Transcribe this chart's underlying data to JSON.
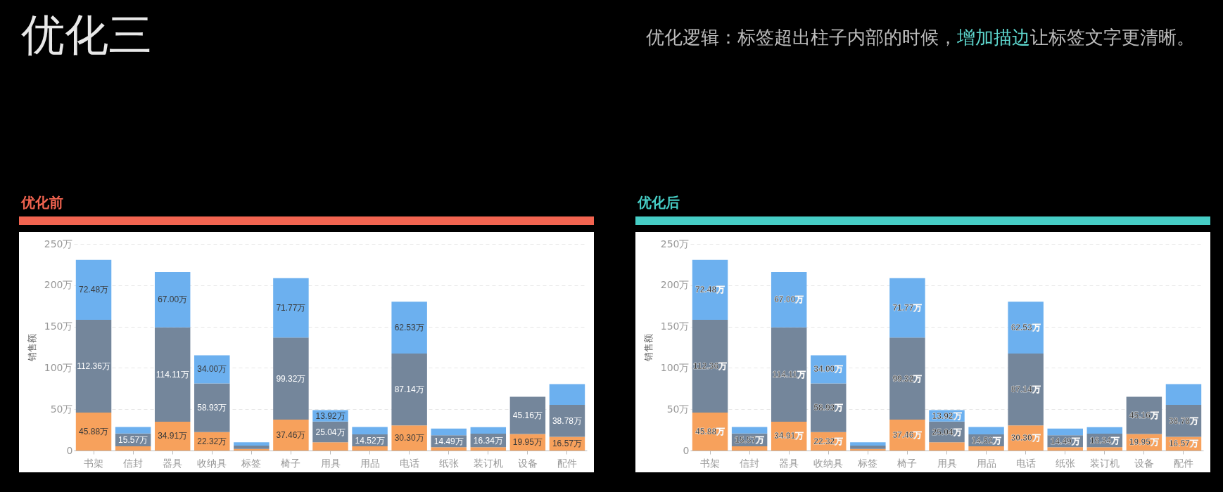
{
  "chart_data": [
    {
      "type": "bar",
      "title": "优化前",
      "annotations": [
        "优化三",
        "优化逻辑：标签超出柱子内部的时候，",
        "增加描边",
        "让标签文字更清晰。"
      ],
      "ylabel": "销售额",
      "stacked": true,
      "grid": "y",
      "ylim": [
        0,
        250
      ],
      "yticks": [
        0,
        {
          "value": 50,
          "label": "50万"
        },
        {
          "value": 100,
          "label": "100万"
        },
        {
          "value": 150,
          "label": "150万"
        },
        {
          "value": 200,
          "label": "200万"
        },
        {
          "value": 250,
          "label": "250万"
        }
      ],
      "categories": [
        "书架",
        "信封",
        "器具",
        "收纳具",
        "标签",
        "椅子",
        "用具",
        "用品",
        "电话",
        "纸张",
        "装订机",
        "设备",
        "配件"
      ],
      "series": [
        {
          "color": "#f7a15c",
          "values": [
            45.88,
            5,
            34.91,
            22.32,
            2,
            37.46,
            10,
            5,
            30.3,
            4,
            4,
            19.95,
            16.57
          ],
          "value_labels": [
            "45.88万",
            null,
            "34.91万",
            "22.32万",
            null,
            "37.46万",
            null,
            null,
            "30.30万",
            null,
            null,
            "19.95万",
            "16.57万"
          ]
        },
        {
          "color": "#74869b",
          "values": [
            112.36,
            15.57,
            114.11,
            58.93,
            4,
            99.32,
            25.04,
            14.52,
            87.14,
            14.49,
            16.34,
            45.16,
            38.78
          ],
          "value_labels": [
            "112.36万",
            "15.57万",
            "114.11万",
            "58.93万",
            null,
            "99.32万",
            "25.04万",
            "14.52万",
            "87.14万",
            "14.49万",
            "16.34万",
            "45.16万",
            "38.78万"
          ]
        },
        {
          "color": "#6cb0ef",
          "values": [
            72.48,
            8,
            67,
            34,
            4,
            71.77,
            13.92,
            9,
            62.53,
            8,
            8,
            null,
            25
          ],
          "value_labels": [
            "72.48万",
            null,
            "67.00万",
            "34.00万",
            null,
            "71.77万",
            "13.92万",
            null,
            "62.53万",
            null,
            null,
            null,
            null
          ]
        }
      ]
    },
    {
      "type": "bar",
      "title": "优化后",
      "ylabel": "销售额",
      "stacked": true,
      "grid": "y",
      "ylim": [
        0,
        250
      ],
      "yticks": [
        0,
        {
          "value": 50,
          "label": "50万"
        },
        {
          "value": 100,
          "label": "100万"
        },
        {
          "value": 150,
          "label": "150万"
        },
        {
          "value": 200,
          "label": "200万"
        },
        {
          "value": 250,
          "label": "250万"
        }
      ],
      "categories": [
        "书架",
        "信封",
        "器具",
        "收纳具",
        "标签",
        "椅子",
        "用具",
        "用品",
        "电话",
        "纸张",
        "装订机",
        "设备",
        "配件"
      ],
      "series": [
        {
          "color": "#f7a15c",
          "values": [
            45.88,
            5,
            34.91,
            22.32,
            2,
            37.46,
            10,
            5,
            30.3,
            4,
            4,
            19.95,
            16.57
          ],
          "value_labels": [
            "45.88万",
            null,
            "34.91万",
            "22.32万",
            null,
            "37.46万",
            null,
            null,
            "30.30万",
            null,
            null,
            "19.95万",
            "16.57万"
          ]
        },
        {
          "color": "#74869b",
          "values": [
            112.36,
            15.57,
            114.11,
            58.93,
            4,
            99.32,
            25.04,
            14.52,
            87.14,
            14.49,
            16.34,
            45.16,
            38.78
          ],
          "value_labels": [
            "112.36万",
            "15.57万",
            "114.11万",
            "58.93万",
            null,
            "99.32万",
            "25.04万",
            "14.52万",
            "87.14万",
            "14.49万",
            "16.34万",
            "45.16万",
            "38.78万"
          ]
        },
        {
          "color": "#6cb0ef",
          "values": [
            72.48,
            8,
            67,
            34,
            4,
            71.77,
            13.92,
            9,
            62.53,
            8,
            8,
            null,
            25
          ],
          "value_labels": [
            "72.48万",
            null,
            "67.00万",
            "34.00万",
            null,
            "71.77万",
            "13.92万",
            null,
            "62.53万",
            null,
            null,
            null,
            null
          ]
        }
      ]
    }
  ]
}
